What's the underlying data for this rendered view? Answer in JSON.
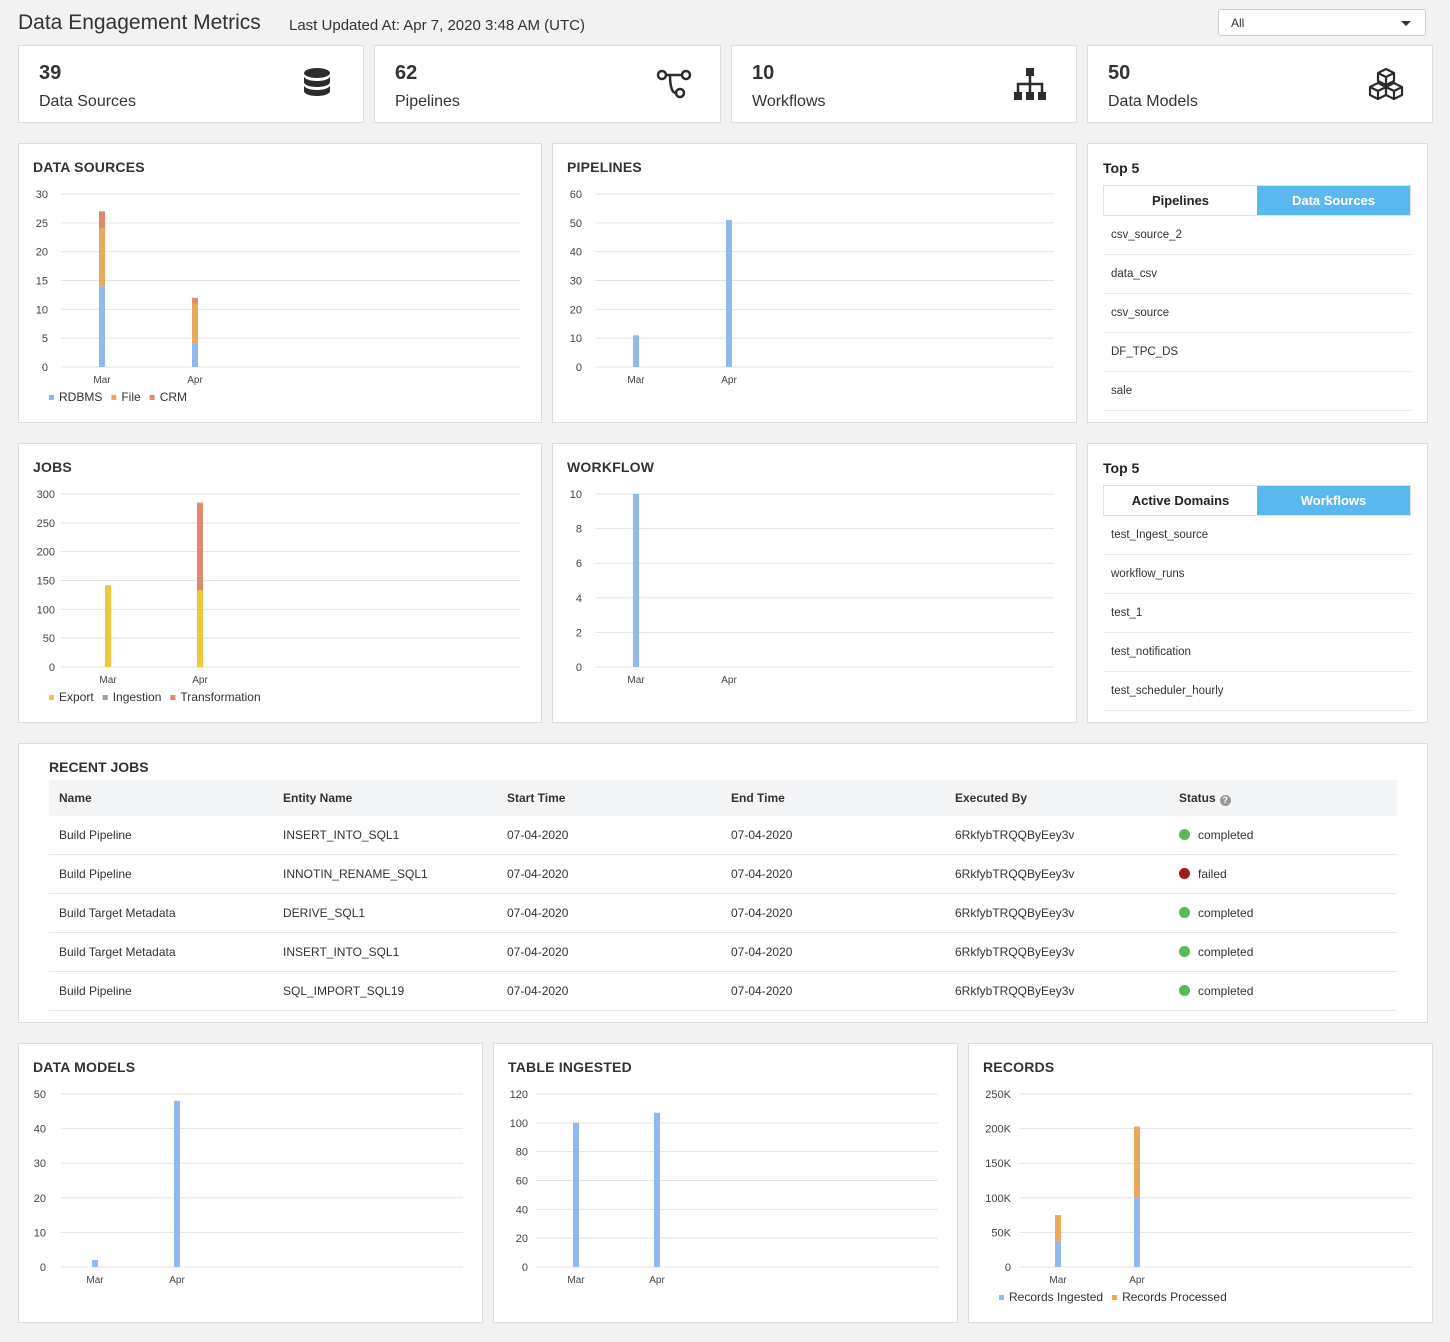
{
  "header": {
    "title": "Data Engagement Metrics",
    "last_updated": "Last Updated At: Apr 7, 2020 3:48 AM (UTC)",
    "filter_value": "All"
  },
  "stats": [
    {
      "value": "39",
      "label": "Data Sources",
      "icon": "database-icon"
    },
    {
      "value": "62",
      "label": "Pipelines",
      "icon": "pipeline-icon"
    },
    {
      "value": "10",
      "label": "Workflows",
      "icon": "sitemap-icon"
    },
    {
      "value": "50",
      "label": "Data Models",
      "icon": "cubes-icon"
    }
  ],
  "colors": {
    "blue": "#91b9f0",
    "orange": "#eaa85c",
    "red": "#e0896c",
    "yellow": "#f0c63c",
    "green": "#8fa98f",
    "accent": "#5bb8ee",
    "completed": "#5cb85c",
    "failed": "#a01c1c"
  },
  "top5_pipelines": {
    "title": "Top 5",
    "tabs": [
      "Pipelines",
      "Data Sources"
    ],
    "active_tab": 1,
    "items": [
      "csv_source_2",
      "data_csv",
      "csv_source",
      "DF_TPC_DS",
      "sale"
    ]
  },
  "top5_workflows": {
    "title": "Top 5",
    "tabs": [
      "Active Domains",
      "Workflows"
    ],
    "active_tab": 1,
    "items": [
      "test_Ingest_source",
      "workflow_runs",
      "test_1",
      "test_notification",
      "test_scheduler_hourly"
    ]
  },
  "recent_jobs": {
    "title": "RECENT JOBS",
    "columns": [
      "Name",
      "Entity Name",
      "Start Time",
      "End Time",
      "Executed By",
      "Status"
    ],
    "rows": [
      {
        "name": "Build Pipeline",
        "entity": "INSERT_INTO_SQL1",
        "start": "07-04-2020",
        "end": "07-04-2020",
        "by": "6RkfybTRQQByEey3v",
        "status": "completed"
      },
      {
        "name": "Build Pipeline",
        "entity": "INNOTIN_RENAME_SQL1",
        "start": "07-04-2020",
        "end": "07-04-2020",
        "by": "6RkfybTRQQByEey3v",
        "status": "failed"
      },
      {
        "name": "Build Target Metadata",
        "entity": "DERIVE_SQL1",
        "start": "07-04-2020",
        "end": "07-04-2020",
        "by": "6RkfybTRQQByEey3v",
        "status": "completed"
      },
      {
        "name": "Build Target Metadata",
        "entity": "INSERT_INTO_SQL1",
        "start": "07-04-2020",
        "end": "07-04-2020",
        "by": "6RkfybTRQQByEey3v",
        "status": "completed"
      },
      {
        "name": "Build Pipeline",
        "entity": "SQL_IMPORT_SQL19",
        "start": "07-04-2020",
        "end": "07-04-2020",
        "by": "6RkfybTRQQByEey3v",
        "status": "completed"
      }
    ]
  },
  "chart_data": [
    {
      "id": "data-sources",
      "type": "bar",
      "title": "DATA SOURCES",
      "categories": [
        "Mar",
        "Apr"
      ],
      "series": [
        {
          "name": "RDBMS",
          "color": "#91b9f0",
          "values": [
            14,
            4
          ]
        },
        {
          "name": "File",
          "color": "#eaa85c",
          "values": [
            10,
            7
          ]
        },
        {
          "name": "CRM",
          "color": "#e0896c",
          "values": [
            3,
            1
          ]
        }
      ],
      "yticks": [
        "0",
        "5",
        "10",
        "15",
        "20",
        "25",
        "30"
      ],
      "ylim": [
        0,
        30
      ],
      "legend": "bottom-left",
      "grid": true
    },
    {
      "id": "pipelines",
      "type": "bar",
      "title": "PIPELINES",
      "categories": [
        "Mar",
        "Apr"
      ],
      "series": [
        {
          "color": "#91b9f0",
          "values": [
            11,
            51
          ]
        }
      ],
      "yticks": [
        "0",
        "10",
        "20",
        "30",
        "40",
        "50",
        "60"
      ],
      "ylim": [
        0,
        60
      ],
      "grid": true
    },
    {
      "id": "jobs",
      "type": "bar",
      "title": "JOBS",
      "categories": [
        "Mar",
        "Apr"
      ],
      "series": [
        {
          "name": "Export",
          "color": "#f0c63c",
          "values": [
            142,
            133
          ]
        },
        {
          "name": "Ingestion",
          "color": "#8fa98f",
          "values": [
            0,
            0
          ]
        },
        {
          "name": "Transformation",
          "color": "#e0896c",
          "values": [
            0,
            152
          ]
        }
      ],
      "yticks": [
        "0",
        "50",
        "100",
        "150",
        "200",
        "250",
        "300"
      ],
      "ylim": [
        0,
        300
      ],
      "legend": "bottom-left",
      "grid": true
    },
    {
      "id": "workflow",
      "type": "bar",
      "title": "WORKFLOW",
      "categories": [
        "Mar",
        "Apr"
      ],
      "series": [
        {
          "color": "#91b9f0",
          "values": [
            10,
            0
          ]
        }
      ],
      "yticks": [
        "0",
        "2",
        "4",
        "6",
        "8",
        "10"
      ],
      "ylim": [
        0,
        10
      ],
      "grid": true
    },
    {
      "id": "data-models",
      "type": "bar",
      "title": "DATA MODELS",
      "categories": [
        "Mar",
        "Apr"
      ],
      "series": [
        {
          "color": "#91b9f0",
          "values": [
            2,
            48
          ]
        }
      ],
      "yticks": [
        "0",
        "10",
        "20",
        "30",
        "40",
        "50"
      ],
      "ylim": [
        0,
        50
      ],
      "grid": true
    },
    {
      "id": "table-ingested",
      "type": "bar",
      "title": "TABLE INGESTED",
      "categories": [
        "Mar",
        "Apr"
      ],
      "series": [
        {
          "color": "#91b9f0",
          "values": [
            100,
            107
          ]
        }
      ],
      "yticks": [
        "0",
        "20",
        "40",
        "60",
        "80",
        "100",
        "120"
      ],
      "ylim": [
        0,
        120
      ],
      "grid": true
    },
    {
      "id": "records",
      "type": "bar",
      "title": "RECORDS",
      "categories": [
        "Mar",
        "Apr"
      ],
      "series": [
        {
          "name": "Records Ingested",
          "color": "#91b9f0",
          "values": [
            38000,
            101000
          ]
        },
        {
          "name": "Records Processed",
          "color": "#eaa85c",
          "values": [
            37000,
            102000
          ]
        }
      ],
      "yticks": [
        "0",
        "50K",
        "100K",
        "150K",
        "200K",
        "250K"
      ],
      "ylim": [
        0,
        250000
      ],
      "legend": "bottom-left",
      "grid": true
    }
  ]
}
